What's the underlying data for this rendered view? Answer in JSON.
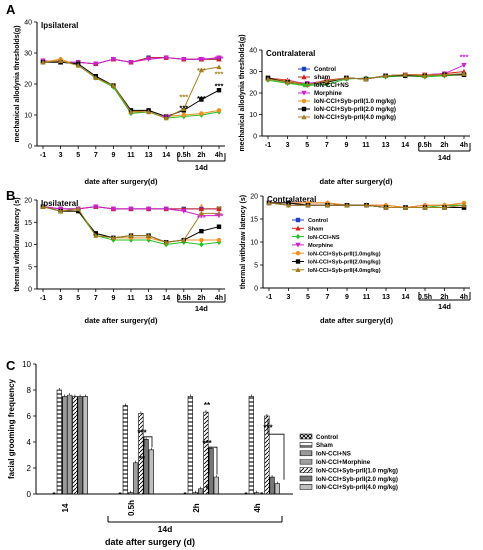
{
  "panel_labels": [
    "A",
    "B",
    "C"
  ],
  "chart_data": [
    {
      "type": "line",
      "panel": "A",
      "title": "Ipsilateral",
      "ylabel": "mechanical allodynia thresholds(g)",
      "xlabel": "date after surgery(d)",
      "x_ticks": [
        "-1",
        "3",
        "5",
        "7",
        "9",
        "11",
        "13",
        "14",
        "0.5h",
        "2h",
        "4h"
      ],
      "bracket_label": "14d",
      "ylim": [
        0,
        40
      ],
      "y_ticks": [
        0,
        10,
        20,
        30,
        40
      ],
      "series": [
        {
          "name": "Control",
          "color": "#1f3fbf",
          "marker": "square",
          "values": [
            27.5,
            27,
            27,
            26.5,
            28,
            27,
            28.5,
            28.5,
            28,
            28,
            28
          ]
        },
        {
          "name": "sham",
          "color": "#d62020",
          "marker": "triangle",
          "values": [
            27.5,
            27,
            27,
            26.5,
            28,
            27,
            28.5,
            28.5,
            28,
            28,
            28
          ]
        },
        {
          "name": "IoN-CCI+NS",
          "color": "#20c020",
          "marker": "diamond",
          "values": [
            27,
            27.5,
            26,
            22,
            19,
            10.5,
            11,
            9,
            9.5,
            10,
            11
          ]
        },
        {
          "name": "Morphine",
          "color": "#d020d0",
          "marker": "triangle-down",
          "values": [
            27.5,
            27,
            27,
            26.5,
            28,
            27,
            28,
            28.5,
            28,
            28,
            28.5
          ]
        },
        {
          "name": "IoN-CCI+Syb-prII(1.0 mg/kg)",
          "color": "#f09020",
          "marker": "circle",
          "values": [
            27,
            28,
            26,
            22,
            19.5,
            11,
            11.5,
            9.5,
            10,
            10.5,
            11.5
          ]
        },
        {
          "name": "IoN-CCI+Syb-prII(2.0 mg/kg)",
          "color": "#000000",
          "marker": "square",
          "values": [
            27,
            27,
            26.5,
            22.5,
            19.5,
            11.5,
            11.5,
            9.5,
            11.5,
            15,
            18
          ]
        },
        {
          "name": "IoN-CCI+Syb-prII(4.0 mg/kg)",
          "color": "#a08020",
          "marker": "triangle",
          "values": [
            27,
            27.5,
            26,
            22,
            19.5,
            11,
            11,
            9,
            12,
            24.5,
            25.5
          ]
        }
      ],
      "annotations": [
        {
          "text": "***",
          "color": "#d020d0",
          "x": "2h",
          "y": 27
        },
        {
          "text": "***",
          "color": "#d020d0",
          "x": "4h",
          "y": 27.5
        },
        {
          "text": "***",
          "color": "#a08020",
          "x": "0.5h",
          "y": 15
        },
        {
          "text": "***",
          "color": "#a08020",
          "x": "2h",
          "y": 23.5
        },
        {
          "text": "***",
          "color": "#a08020",
          "x": "4h",
          "y": 22.5
        },
        {
          "text": "***",
          "color": "#000000",
          "x": "0.5h",
          "y": 11.5
        },
        {
          "text": "***",
          "color": "#000000",
          "x": "2h",
          "y": 14.5
        },
        {
          "text": "***",
          "color": "#000000",
          "x": "4h",
          "y": 18.5
        },
        {
          "text": "***",
          "color": "#d020d0",
          "x": "14",
          "y": 8.5
        }
      ]
    },
    {
      "type": "line",
      "panel": "A",
      "title": "Contralateral",
      "ylabel": "mechanical allodynia thresholds(g)",
      "xlabel": "date after surgery(d)",
      "x_ticks": [
        "-1",
        "3",
        "5",
        "7",
        "9",
        "11",
        "13",
        "14",
        "0.5h",
        "2h",
        "4h"
      ],
      "bracket_label": "14d",
      "ylim": [
        0,
        40
      ],
      "y_ticks": [
        0,
        10,
        20,
        30,
        40
      ],
      "series": [
        {
          "name": "Control",
          "color": "#1f3fbf",
          "marker": "square",
          "values": [
            27,
            25.5,
            24,
            25.5,
            27,
            26.5,
            28,
            28.5,
            28.5,
            28.5,
            28.5
          ]
        },
        {
          "name": "sham",
          "color": "#d62020",
          "marker": "triangle",
          "values": [
            27,
            26,
            24,
            26,
            27,
            26.5,
            28,
            28.5,
            28.5,
            29,
            30
          ]
        },
        {
          "name": "IoN-CCI+NS",
          "color": "#20c020",
          "marker": "diamond",
          "values": [
            26,
            24.5,
            23.5,
            24,
            26.5,
            27,
            27.5,
            28,
            27.5,
            28,
            28.5
          ]
        },
        {
          "name": "Morphine",
          "color": "#d020d0",
          "marker": "triangle-down",
          "values": [
            27,
            25.5,
            24.5,
            25.5,
            27,
            26.5,
            28,
            28.5,
            28.5,
            29,
            33
          ]
        },
        {
          "name": "IoN-CCI+Syb-prII(1.0 mg/kg)",
          "color": "#f09020",
          "marker": "circle",
          "values": [
            27,
            25.5,
            24,
            25.5,
            27,
            26.5,
            28,
            28.5,
            28.5,
            28.5,
            28.5
          ]
        },
        {
          "name": "IoN-CCI+Syb-prII(2.0 mg/kg)",
          "color": "#000000",
          "marker": "square",
          "values": [
            27,
            25,
            24,
            25,
            27,
            26.5,
            28,
            28,
            28,
            28.5,
            28.5
          ]
        },
        {
          "name": "IoN-CCI+Syb-prII(4.0 mg/kg)",
          "color": "#a08020",
          "marker": "triangle",
          "values": [
            26.5,
            25,
            24,
            25.5,
            27,
            26.5,
            28,
            28.5,
            28,
            28.5,
            29
          ]
        }
      ],
      "annotations": [
        {
          "text": "***",
          "color": "#d020d0",
          "x": "4h",
          "y": 35.5
        },
        {
          "text": "*",
          "color": "#d020d0",
          "x": "4h",
          "y": 31
        }
      ],
      "legend": [
        "Control",
        "sham",
        "IoN-CCI+NS",
        "Morphine",
        "IoN-CCI+Syb-prII(1.0 mg/kg)",
        "IoN-CCI+Syb-prII(2.0 mg/kg)",
        "IoN-CCI+Syb-prII(4.0 mg/kg)"
      ]
    },
    {
      "type": "line",
      "panel": "B",
      "title": "Ipsilateral",
      "ylabel": "thermal withdraw latency (s)",
      "xlabel": "date after surgery(d)",
      "x_ticks": [
        "-1",
        "3",
        "5",
        "7",
        "9",
        "11",
        "13",
        "14",
        "0.5h",
        "2h",
        "4h"
      ],
      "bracket_label": "14d",
      "ylim": [
        0,
        20
      ],
      "y_ticks": [
        0,
        5,
        10,
        15,
        20
      ],
      "series": [
        {
          "name": "Control",
          "color": "#1f3fbf",
          "marker": "square",
          "values": [
            18.5,
            18,
            18,
            18.5,
            18,
            18,
            18,
            18,
            18,
            18,
            18
          ]
        },
        {
          "name": "Sham",
          "color": "#d62020",
          "marker": "triangle",
          "values": [
            18.5,
            18,
            18,
            18.5,
            18,
            18,
            18,
            18,
            18,
            18,
            18
          ]
        },
        {
          "name": "IoN-CCI+NS",
          "color": "#20c020",
          "marker": "diamond",
          "values": [
            18.5,
            17.5,
            17.5,
            12,
            11,
            11,
            11,
            10,
            10.5,
            10,
            10.5
          ]
        },
        {
          "name": "Morphine",
          "color": "#d020d0",
          "marker": "triangle-down",
          "values": [
            18.5,
            18,
            18,
            18.5,
            18,
            18,
            18,
            18,
            17.5,
            16.5,
            16.5
          ]
        },
        {
          "name": "IoN-CCI+Syb-prII(1.0 mg/kg)",
          "color": "#f09020",
          "marker": "circle",
          "values": [
            18.5,
            17.5,
            17.5,
            12.5,
            11.5,
            11.5,
            11.5,
            10.5,
            11,
            11,
            11
          ]
        },
        {
          "name": "IoN-CCI+Syb-prII(2.0 mg/kg)",
          "color": "#000000",
          "marker": "square",
          "values": [
            18.5,
            17.5,
            17.5,
            12.5,
            11.5,
            12,
            12,
            10.5,
            11,
            13,
            14
          ]
        },
        {
          "name": "IoN-CCI+Syb-prII(4.0 mg/kg)",
          "color": "#a08020",
          "marker": "triangle",
          "values": [
            18.5,
            17.5,
            18,
            12,
            11.5,
            12,
            12,
            10.5,
            11,
            17,
            17
          ]
        }
      ],
      "annotations": [
        {
          "text": "***",
          "color": "#d020d0",
          "x": "2h",
          "y": 15.5
        },
        {
          "text": "***",
          "color": "#d020d0",
          "x": "4h",
          "y": 15.8
        },
        {
          "text": "**",
          "color": "#a08020",
          "x": "4h",
          "y": 17.5
        },
        {
          "text": "*",
          "color": "#f09020",
          "x": "2h",
          "y": 18
        }
      ]
    },
    {
      "type": "line",
      "panel": "B",
      "title": "Contralateral",
      "ylabel": "thermal withdraw latency (s)",
      "xlabel": "date after surgery(d)",
      "x_ticks": [
        "-1",
        "3",
        "5",
        "7",
        "9",
        "11",
        "13",
        "14",
        "0.5h",
        "2h",
        "4h"
      ],
      "bracket_label": "14d",
      "ylim": [
        0,
        20
      ],
      "y_ticks": [
        0,
        5,
        10,
        15,
        20
      ],
      "series": [
        {
          "name": "Control",
          "color": "#1f3fbf",
          "marker": "square",
          "values": [
            18.5,
            18.5,
            18,
            18,
            18,
            18,
            17.5,
            17.5,
            17.5,
            17.5,
            17.5
          ]
        },
        {
          "name": "Sham",
          "color": "#d62020",
          "marker": "triangle",
          "values": [
            18.5,
            18.5,
            18.5,
            18.5,
            18,
            18,
            18,
            17.5,
            18,
            18,
            18
          ]
        },
        {
          "name": "IoN-CCI+NS",
          "color": "#20c020",
          "marker": "diamond",
          "values": [
            18.5,
            18,
            18,
            18,
            18,
            18,
            17.5,
            17.5,
            17.5,
            18,
            18
          ]
        },
        {
          "name": "Morphine",
          "color": "#d020d0",
          "marker": "triangle-down",
          "values": [
            18.5,
            18,
            18,
            18,
            18,
            18,
            17.5,
            17.5,
            17.5,
            17.5,
            17.5
          ]
        },
        {
          "name": "IoN-CCI+Syb-prII(1.0mg/kg)",
          "color": "#f09020",
          "marker": "circle",
          "values": [
            18.5,
            18.5,
            18.5,
            18.5,
            18,
            18,
            18,
            17.5,
            18,
            18,
            18.5
          ]
        },
        {
          "name": "IoN-CCI+Syb-prII(2.0mg/kg)",
          "color": "#000000",
          "marker": "square",
          "values": [
            18.5,
            18.5,
            18,
            18,
            18,
            18,
            17.5,
            17.5,
            17.5,
            17.5,
            17.5
          ]
        },
        {
          "name": "IoN-CCI+Syb-prII(4.0mg/kg)",
          "color": "#a08020",
          "marker": "triangle",
          "values": [
            18.5,
            18,
            18,
            18,
            18,
            18,
            17.5,
            17.5,
            17.5,
            17.5,
            18
          ]
        }
      ],
      "legend": [
        "Control",
        "Sham",
        "IoN-CCI+NS",
        "Morphine",
        "IoN-CCI+Syb-prII(1.0mg/kg)",
        "IoN-CCI+Syb-prII(2.0mg/kg)",
        "IoN-CCI+Syb-prII(4.0mg/kg)"
      ]
    },
    {
      "type": "bar",
      "panel": "C",
      "ylabel": "facial grooming frequency",
      "xlabel": "date after surgery (d)",
      "categories": [
        "14",
        "0.5h",
        "2h",
        "4h"
      ],
      "bracket_label": "14d",
      "ylim": [
        0,
        10
      ],
      "y_ticks": [
        0,
        2,
        4,
        6,
        8,
        10
      ],
      "series": [
        {
          "name": "Control",
          "values": [
            0,
            0,
            0,
            0
          ]
        },
        {
          "name": "Sham",
          "values": [
            8,
            6.8,
            7.5,
            7.5
          ]
        },
        {
          "name": "IoN-CCI+NS",
          "values": [
            7.5,
            0.1,
            0.1,
            0.1
          ]
        },
        {
          "name": "IoN-CCI+Morphine",
          "values": [
            7.6,
            2.4,
            0.4,
            0
          ]
        },
        {
          "name": "IoN-CCI+Syb-prII(1.0 mg/kg)",
          "values": [
            7.5,
            6.2,
            6.3,
            6
          ]
        },
        {
          "name": "IoN-CCI+Syb-prII(2.0 mg/kg)",
          "values": [
            7.5,
            4.2,
            3.5,
            1.3
          ]
        },
        {
          "name": "IoN-CCI+Syb-prII(4.0 mg/kg)",
          "values": [
            7.5,
            3.4,
            1.3,
            0.8
          ]
        }
      ],
      "annotations": [
        {
          "text": "**",
          "category": "0.5h",
          "y": 2.5
        },
        {
          "text": "***",
          "category": "0.5h",
          "y": 4.5
        },
        {
          "text": "**",
          "category": "2h",
          "y": 6.6
        },
        {
          "text": "***",
          "category": "2h",
          "y": 3.7
        },
        {
          "text": "*",
          "category": "2h",
          "y": 0.2
        },
        {
          "text": "***",
          "category": "4h",
          "y": 4.9
        }
      ]
    }
  ]
}
